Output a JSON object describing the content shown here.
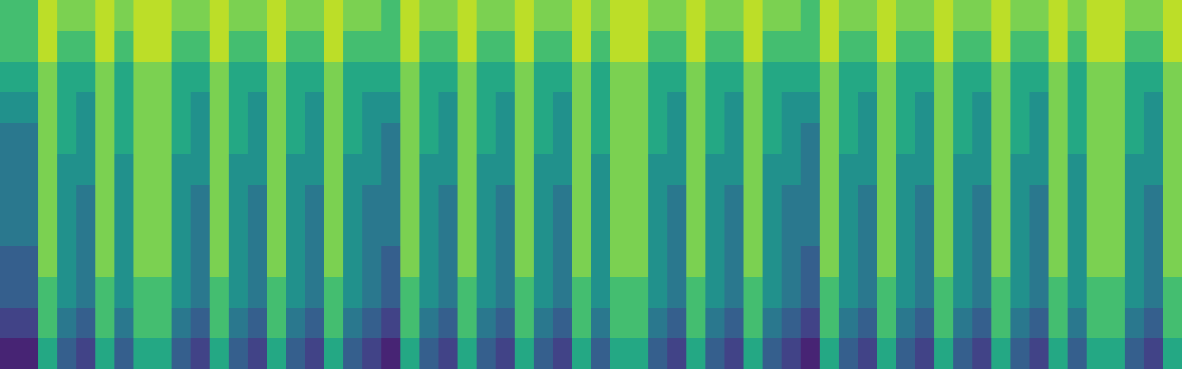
{
  "chart_data": {
    "type": "heatmap",
    "color": "Viridis",
    "zlim": [
      0,
      10
    ],
    "tick_labels": false,
    "cells": [
      [
        7,
        7,
        9,
        8,
        8,
        9,
        8,
        9,
        9,
        8,
        8,
        9,
        8,
        8,
        9,
        8,
        8,
        9,
        8,
        8,
        7,
        9,
        8,
        8,
        9,
        8,
        8,
        9,
        8,
        8,
        9,
        8,
        9,
        9,
        8,
        8,
        9,
        8,
        8,
        9,
        8,
        8,
        7,
        9,
        8,
        8,
        9,
        8,
        8,
        9,
        8,
        8,
        9,
        8,
        8,
        9,
        8,
        9,
        9,
        8,
        8,
        9
      ],
      [
        7,
        7,
        9,
        7,
        7,
        9,
        7,
        9,
        9,
        7,
        7,
        9,
        7,
        7,
        9,
        7,
        7,
        9,
        7,
        7,
        7,
        9,
        7,
        7,
        9,
        7,
        7,
        9,
        7,
        7,
        9,
        7,
        9,
        9,
        7,
        7,
        9,
        7,
        7,
        9,
        7,
        7,
        7,
        9,
        7,
        7,
        9,
        7,
        7,
        9,
        7,
        7,
        9,
        7,
        7,
        9,
        7,
        9,
        9,
        7,
        7,
        9
      ],
      [
        6,
        6,
        8,
        6,
        6,
        8,
        6,
        8,
        8,
        6,
        6,
        8,
        6,
        6,
        8,
        6,
        6,
        8,
        6,
        6,
        6,
        8,
        6,
        6,
        8,
        6,
        6,
        8,
        6,
        6,
        8,
        6,
        8,
        8,
        6,
        6,
        8,
        6,
        6,
        8,
        6,
        6,
        6,
        8,
        6,
        6,
        8,
        6,
        6,
        8,
        6,
        6,
        8,
        6,
        6,
        8,
        6,
        8,
        8,
        6,
        6,
        8
      ],
      [
        5,
        5,
        8,
        6,
        5,
        8,
        6,
        8,
        8,
        6,
        5,
        8,
        6,
        5,
        8,
        6,
        5,
        8,
        6,
        5,
        5,
        8,
        6,
        5,
        8,
        6,
        5,
        8,
        6,
        5,
        8,
        6,
        8,
        8,
        6,
        5,
        8,
        6,
        5,
        8,
        6,
        5,
        5,
        8,
        6,
        5,
        8,
        6,
        5,
        8,
        6,
        5,
        8,
        6,
        5,
        8,
        6,
        8,
        8,
        6,
        5,
        8
      ],
      [
        4,
        4,
        8,
        6,
        5,
        8,
        6,
        8,
        8,
        6,
        5,
        8,
        6,
        5,
        8,
        6,
        5,
        8,
        6,
        5,
        4,
        8,
        6,
        5,
        8,
        6,
        5,
        8,
        6,
        5,
        8,
        6,
        8,
        8,
        6,
        5,
        8,
        6,
        5,
        8,
        6,
        5,
        4,
        8,
        6,
        5,
        8,
        6,
        5,
        8,
        6,
        5,
        8,
        6,
        5,
        8,
        6,
        8,
        8,
        6,
        5,
        8
      ],
      [
        4,
        4,
        8,
        5,
        5,
        8,
        5,
        8,
        8,
        5,
        5,
        8,
        5,
        5,
        8,
        5,
        5,
        8,
        5,
        5,
        4,
        8,
        5,
        5,
        8,
        5,
        5,
        8,
        5,
        5,
        8,
        5,
        8,
        8,
        5,
        5,
        8,
        5,
        5,
        8,
        5,
        5,
        4,
        8,
        5,
        5,
        8,
        5,
        5,
        8,
        5,
        5,
        8,
        5,
        5,
        8,
        5,
        8,
        8,
        5,
        5,
        8
      ],
      [
        4,
        4,
        8,
        5,
        4,
        8,
        5,
        8,
        8,
        5,
        4,
        8,
        5,
        4,
        8,
        5,
        4,
        8,
        5,
        4,
        4,
        8,
        5,
        4,
        8,
        5,
        4,
        8,
        5,
        4,
        8,
        5,
        8,
        8,
        5,
        4,
        8,
        5,
        4,
        8,
        5,
        4,
        4,
        8,
        5,
        4,
        8,
        5,
        4,
        8,
        5,
        4,
        8,
        5,
        4,
        8,
        5,
        8,
        8,
        5,
        4,
        8
      ],
      [
        4,
        4,
        8,
        5,
        4,
        8,
        5,
        8,
        8,
        5,
        4,
        8,
        5,
        4,
        8,
        5,
        4,
        8,
        5,
        4,
        4,
        8,
        5,
        4,
        8,
        5,
        4,
        8,
        5,
        4,
        8,
        5,
        8,
        8,
        5,
        4,
        8,
        5,
        4,
        8,
        5,
        4,
        4,
        8,
        5,
        4,
        8,
        5,
        4,
        8,
        5,
        4,
        8,
        5,
        4,
        8,
        5,
        8,
        8,
        5,
        4,
        8
      ],
      [
        3,
        3,
        8,
        5,
        4,
        8,
        5,
        8,
        8,
        5,
        4,
        8,
        5,
        4,
        8,
        5,
        4,
        8,
        5,
        4,
        3,
        8,
        5,
        4,
        8,
        5,
        4,
        8,
        5,
        4,
        8,
        5,
        8,
        8,
        5,
        4,
        8,
        5,
        4,
        8,
        5,
        4,
        3,
        8,
        5,
        4,
        8,
        5,
        4,
        8,
        5,
        4,
        8,
        5,
        4,
        8,
        5,
        8,
        8,
        5,
        4,
        8
      ],
      [
        3,
        3,
        7,
        5,
        4,
        7,
        5,
        7,
        7,
        5,
        4,
        7,
        5,
        4,
        7,
        5,
        4,
        7,
        5,
        4,
        3,
        7,
        5,
        4,
        7,
        5,
        4,
        7,
        5,
        4,
        7,
        5,
        7,
        7,
        5,
        4,
        7,
        5,
        4,
        7,
        5,
        4,
        3,
        7,
        5,
        4,
        7,
        5,
        4,
        7,
        5,
        4,
        7,
        5,
        4,
        7,
        5,
        7,
        7,
        5,
        4,
        7
      ],
      [
        2,
        2,
        7,
        4,
        3,
        7,
        4,
        7,
        7,
        4,
        3,
        7,
        4,
        3,
        7,
        4,
        3,
        7,
        4,
        3,
        2,
        7,
        4,
        3,
        7,
        4,
        3,
        7,
        4,
        3,
        7,
        4,
        7,
        7,
        4,
        3,
        7,
        4,
        3,
        7,
        4,
        3,
        2,
        7,
        4,
        3,
        7,
        4,
        3,
        7,
        4,
        3,
        7,
        4,
        3,
        7,
        4,
        7,
        7,
        4,
        3,
        7
      ],
      [
        1,
        1,
        6,
        3,
        2,
        6,
        3,
        6,
        6,
        3,
        2,
        6,
        3,
        2,
        6,
        3,
        2,
        6,
        3,
        2,
        1,
        6,
        3,
        2,
        6,
        3,
        2,
        6,
        3,
        2,
        6,
        3,
        6,
        6,
        3,
        2,
        6,
        3,
        2,
        6,
        3,
        2,
        1,
        6,
        3,
        2,
        6,
        3,
        2,
        6,
        3,
        2,
        6,
        3,
        2,
        6,
        3,
        6,
        6,
        3,
        2,
        6
      ]
    ]
  }
}
